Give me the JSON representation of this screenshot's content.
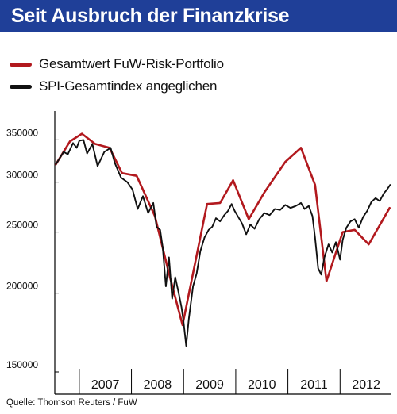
{
  "title": "Seit Ausbruch der Finanzkrise",
  "source": "Quelle: Thomson Reuters / FuW",
  "chart_data": {
    "type": "line",
    "title": "Seit Ausbruch der Finanzkrise",
    "yscale": "log",
    "ylim": [
      150000,
      380000
    ],
    "xlim": [
      2006.53,
      2012.97
    ],
    "grid": "horizontal",
    "legend_position": "top-left",
    "yticks": [
      {
        "value": 150000,
        "label": "150000"
      },
      {
        "value": 200000,
        "label": "200000"
      },
      {
        "value": 250000,
        "label": "250000"
      },
      {
        "value": 300000,
        "label": "300000"
      },
      {
        "value": 350000,
        "label": "350000"
      }
    ],
    "xtick_labels": [
      {
        "x": 2007.5,
        "label": "2007"
      },
      {
        "x": 2008.5,
        "label": "2008"
      },
      {
        "x": 2009.5,
        "label": "2009"
      },
      {
        "x": 2010.5,
        "label": "2010"
      },
      {
        "x": 2011.5,
        "label": "2011"
      },
      {
        "x": 2012.5,
        "label": "2012"
      }
    ],
    "series": [
      {
        "name": "Gesamtwert FuW-Risk-Portfolio",
        "color": "#b2191e",
        "points": [
          [
            2006.55,
            320000
          ],
          [
            2006.82,
            348000
          ],
          [
            2007.05,
            358000
          ],
          [
            2007.3,
            345000
          ],
          [
            2007.58,
            340000
          ],
          [
            2007.82,
            310000
          ],
          [
            2008.1,
            307000
          ],
          [
            2008.45,
            265000
          ],
          [
            2008.72,
            215000
          ],
          [
            2008.98,
            178000
          ],
          [
            2009.45,
            277000
          ],
          [
            2009.7,
            278000
          ],
          [
            2009.95,
            302000
          ],
          [
            2010.25,
            262000
          ],
          [
            2010.55,
            289000
          ],
          [
            2010.95,
            323000
          ],
          [
            2011.25,
            340000
          ],
          [
            2011.52,
            297000
          ],
          [
            2011.74,
            209000
          ],
          [
            2012.05,
            250000
          ],
          [
            2012.28,
            252000
          ],
          [
            2012.55,
            239000
          ],
          [
            2012.95,
            273000
          ]
        ]
      },
      {
        "name": "SPI-Gesamtindex angeglichen",
        "color": "#111111",
        "points": [
          [
            2006.55,
            320000
          ],
          [
            2006.7,
            335000
          ],
          [
            2006.78,
            332000
          ],
          [
            2006.88,
            346000
          ],
          [
            2006.95,
            340000
          ],
          [
            2007.0,
            349000
          ],
          [
            2007.08,
            350000
          ],
          [
            2007.15,
            333000
          ],
          [
            2007.25,
            345000
          ],
          [
            2007.35,
            318000
          ],
          [
            2007.48,
            335000
          ],
          [
            2007.6,
            340000
          ],
          [
            2007.68,
            322000
          ],
          [
            2007.8,
            305000
          ],
          [
            2007.92,
            300000
          ],
          [
            2008.02,
            292000
          ],
          [
            2008.12,
            272000
          ],
          [
            2008.22,
            285000
          ],
          [
            2008.32,
            268000
          ],
          [
            2008.42,
            278000
          ],
          [
            2008.48,
            255000
          ],
          [
            2008.55,
            252000
          ],
          [
            2008.6,
            236000
          ],
          [
            2008.66,
            205000
          ],
          [
            2008.72,
            228000
          ],
          [
            2008.78,
            196000
          ],
          [
            2008.84,
            212000
          ],
          [
            2008.9,
            201000
          ],
          [
            2008.96,
            190000
          ],
          [
            2009.0,
            180000
          ],
          [
            2009.05,
            165000
          ],
          [
            2009.1,
            182000
          ],
          [
            2009.18,
            205000
          ],
          [
            2009.25,
            215000
          ],
          [
            2009.32,
            233000
          ],
          [
            2009.4,
            245000
          ],
          [
            2009.48,
            252000
          ],
          [
            2009.55,
            255000
          ],
          [
            2009.62,
            263000
          ],
          [
            2009.7,
            260000
          ],
          [
            2009.78,
            266000
          ],
          [
            2009.85,
            270000
          ],
          [
            2009.92,
            277000
          ],
          [
            2009.98,
            270000
          ],
          [
            2010.05,
            264000
          ],
          [
            2010.12,
            258000
          ],
          [
            2010.2,
            248000
          ],
          [
            2010.28,
            257000
          ],
          [
            2010.36,
            253000
          ],
          [
            2010.45,
            262000
          ],
          [
            2010.55,
            268000
          ],
          [
            2010.65,
            266000
          ],
          [
            2010.75,
            272000
          ],
          [
            2010.85,
            271000
          ],
          [
            2010.95,
            276000
          ],
          [
            2011.05,
            273000
          ],
          [
            2011.15,
            275000
          ],
          [
            2011.25,
            278000
          ],
          [
            2011.32,
            272000
          ],
          [
            2011.4,
            275000
          ],
          [
            2011.47,
            265000
          ],
          [
            2011.52,
            245000
          ],
          [
            2011.58,
            219000
          ],
          [
            2011.64,
            214000
          ],
          [
            2011.7,
            228000
          ],
          [
            2011.78,
            239000
          ],
          [
            2011.85,
            232000
          ],
          [
            2011.92,
            241000
          ],
          [
            2012.0,
            226000
          ],
          [
            2012.05,
            243000
          ],
          [
            2012.12,
            254000
          ],
          [
            2012.2,
            260000
          ],
          [
            2012.28,
            262000
          ],
          [
            2012.36,
            254000
          ],
          [
            2012.44,
            264000
          ],
          [
            2012.52,
            270000
          ],
          [
            2012.6,
            279000
          ],
          [
            2012.68,
            283000
          ],
          [
            2012.76,
            280000
          ],
          [
            2012.84,
            288000
          ],
          [
            2012.9,
            292000
          ],
          [
            2012.96,
            297000
          ]
        ]
      }
    ]
  }
}
